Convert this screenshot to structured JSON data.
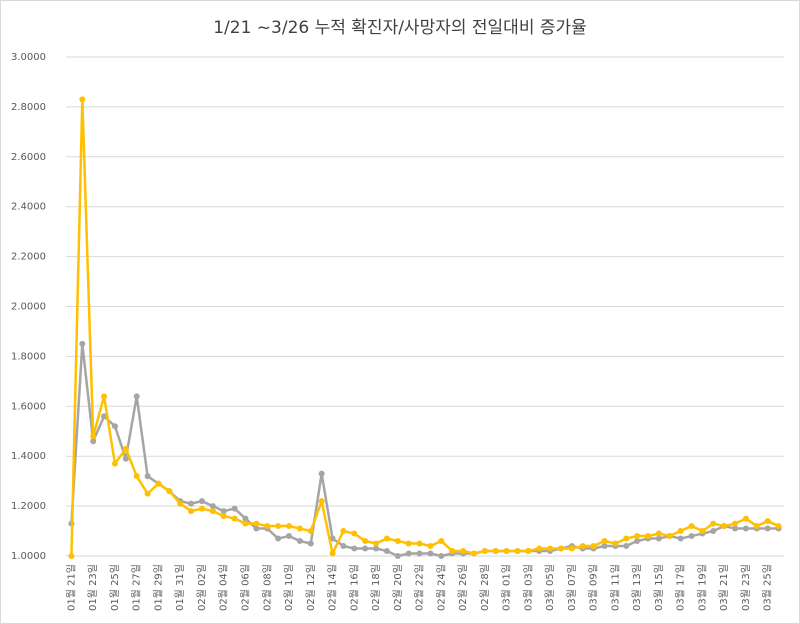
{
  "chart_data": {
    "type": "line",
    "title": "1/21 ~3/26 누적 확진자/사망자의 전일대비 증가율",
    "categories": [
      "01월 21일",
      null,
      "01월 23일",
      null,
      "01월 25일",
      null,
      "01월 27일",
      null,
      "01월 29일",
      null,
      "01월 31일",
      null,
      "02월 02일",
      null,
      "02월 04일",
      null,
      "02월 06일",
      null,
      "02월 08일",
      null,
      "02월 10일",
      null,
      "02월 12일",
      null,
      "02월 14일",
      null,
      "02월 16일",
      null,
      "02월 18일",
      null,
      "02월 20일",
      null,
      "02월 22일",
      null,
      "02월 24일",
      null,
      "02월 26일",
      null,
      "02월 28일",
      null,
      "03월 01일",
      null,
      "03월 03일",
      null,
      "03월 05일",
      null,
      "03월 07일",
      null,
      "03월 09일",
      null,
      "03월 11일",
      null,
      "03월 13일",
      null,
      "03월 15일",
      null,
      "03월 17일",
      null,
      "03월 19일",
      null,
      "03월 21일",
      null,
      "03월 23일",
      null,
      "03월 25일",
      null
    ],
    "series": [
      {
        "color": "#a5a5a5",
        "values": [
          1.13,
          1.85,
          1.46,
          1.56,
          1.52,
          1.39,
          1.64,
          1.32,
          1.29,
          1.26,
          1.22,
          1.21,
          1.22,
          1.2,
          1.18,
          1.19,
          1.15,
          1.11,
          1.11,
          1.07,
          1.08,
          1.06,
          1.05,
          1.33,
          1.07,
          1.04,
          1.03,
          1.03,
          1.03,
          1.02,
          1.0,
          1.01,
          1.01,
          1.01,
          1.0,
          1.01,
          1.01,
          1.01,
          1.02,
          1.02,
          1.02,
          1.02,
          1.02,
          1.02,
          1.02,
          1.03,
          1.04,
          1.03,
          1.03,
          1.04,
          1.04,
          1.04,
          1.06,
          1.07,
          1.07,
          1.08,
          1.07,
          1.08,
          1.09,
          1.1,
          1.12,
          1.11,
          1.11,
          1.11,
          1.11,
          1.11
        ]
      },
      {
        "color": "#ffc000",
        "values": [
          1.0,
          2.83,
          1.48,
          1.64,
          1.37,
          1.43,
          1.32,
          1.25,
          1.29,
          1.26,
          1.21,
          1.18,
          1.19,
          1.18,
          1.16,
          1.15,
          1.13,
          1.13,
          1.12,
          1.12,
          1.12,
          1.11,
          1.1,
          1.22,
          1.01,
          1.1,
          1.09,
          1.06,
          1.05,
          1.07,
          1.06,
          1.05,
          1.05,
          1.04,
          1.06,
          1.02,
          1.02,
          1.01,
          1.02,
          1.02,
          1.02,
          1.02,
          1.02,
          1.03,
          1.03,
          1.03,
          1.03,
          1.04,
          1.04,
          1.06,
          1.05,
          1.07,
          1.08,
          1.08,
          1.09,
          1.08,
          1.1,
          1.12,
          1.1,
          1.13,
          1.12,
          1.13,
          1.15,
          1.12,
          1.14,
          1.12
        ]
      }
    ],
    "ylim": [
      1.0,
      3.0
    ],
    "yticks": [
      {
        "value": 1.0,
        "label": "1.0000"
      },
      {
        "value": 1.2,
        "label": "1.2000"
      },
      {
        "value": 1.4,
        "label": "1.4000"
      },
      {
        "value": 1.6,
        "label": "1.6000"
      },
      {
        "value": 1.8,
        "label": "1.8000"
      },
      {
        "value": 2.0,
        "label": "2.0000"
      },
      {
        "value": 2.2,
        "label": "2.2000"
      },
      {
        "value": 2.4,
        "label": "2.4000"
      },
      {
        "value": 2.6,
        "label": "2.6000"
      },
      {
        "value": 2.8,
        "label": "2.8000"
      },
      {
        "value": 3.0,
        "label": "3.0000"
      }
    ],
    "grid": true
  }
}
